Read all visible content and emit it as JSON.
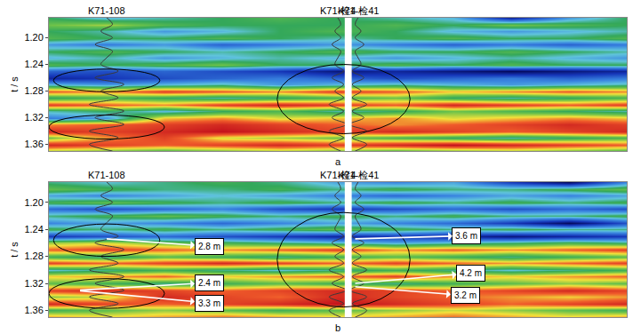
{
  "chart_data": [
    {
      "type": "heatmap",
      "panel_label": "a",
      "y_label": "t / s",
      "x": [
        0,
        10,
        20,
        30,
        40,
        50,
        60,
        70,
        80,
        90,
        100
      ],
      "y": [
        1.17,
        1.18,
        1.19,
        1.2,
        1.21,
        1.22,
        1.23,
        1.24,
        1.25,
        1.26,
        1.27,
        1.28,
        1.29,
        1.3,
        1.31,
        1.32,
        1.33,
        1.34,
        1.35,
        1.36,
        1.37
      ],
      "xlim": [
        0,
        100
      ],
      "ylim": [
        1.37,
        1.17
      ],
      "yticks": [
        {
          "value": 1.2,
          "label": "1.20"
        },
        1.24,
        1.28,
        1.32,
        1.36
      ],
      "tick_labels": "y",
      "gap": [
        51.2,
        52.4
      ],
      "cells": [
        [
          0,
          -0.2,
          -0.1,
          0,
          0.1,
          0,
          -0.1,
          -0.2,
          -0.8,
          -0.3,
          0
        ],
        [
          0.2,
          0.3,
          0.1,
          0,
          0,
          0,
          0.1,
          0,
          0.2,
          0.1,
          0
        ],
        [
          0,
          -0.1,
          -0.3,
          -0.2,
          0,
          0.1,
          0,
          -0.2,
          -0.3,
          -0.2,
          -0.1
        ],
        [
          0.1,
          0,
          0,
          0.1,
          0,
          -0.1,
          0,
          0.1,
          0,
          0,
          0.1
        ],
        [
          -0.3,
          -0.4,
          -0.3,
          -0.5,
          -0.4,
          -0.3,
          -0.4,
          -0.5,
          -0.4,
          -0.5,
          -0.4
        ],
        [
          0,
          0.1,
          0,
          -0.1,
          0,
          0.1,
          0,
          0,
          0.1,
          0,
          -0.1
        ],
        [
          -0.2,
          -0.1,
          -0.3,
          -0.2,
          -0.1,
          -0.2,
          -0.3,
          -0.2,
          -0.1,
          -0.2,
          -0.3
        ],
        [
          0.1,
          0,
          0.1,
          0.2,
          0,
          0,
          0.1,
          0,
          0.1,
          0,
          0
        ],
        [
          -0.5,
          -0.6,
          -0.5,
          -0.6,
          -0.7,
          -0.9,
          -0.8,
          -0.9,
          -1,
          -0.9,
          -0.8
        ],
        [
          -0.8,
          -0.7,
          -0.6,
          -0.5,
          -0.4,
          -0.5,
          -0.6,
          -0.5,
          -0.4,
          -0.5,
          -0.4
        ],
        [
          -0.2,
          -0.3,
          -0.2,
          -0.1,
          -0.3,
          -0.2,
          -0.1,
          -0.2,
          -0.3,
          -0.2,
          -0.1
        ],
        [
          0.7,
          0.6,
          0.8,
          0.7,
          0.6,
          0.8,
          0.7,
          0.5,
          0.6,
          0.7,
          0.6
        ],
        [
          0,
          0.1,
          0,
          -0.1,
          0,
          0.1,
          0.2,
          0,
          -0.1,
          0,
          0.1
        ],
        [
          0.8,
          0.7,
          0.6,
          0.8,
          0.9,
          0.8,
          0.7,
          0.9,
          0.8,
          0.7,
          0.8
        ],
        [
          -0.1,
          0,
          -0.2,
          0,
          0.1,
          -0.1,
          0,
          0.2,
          0.1,
          0,
          -0.1
        ],
        [
          -0.4,
          -0.3,
          0.5,
          0.6,
          0.4,
          0.5,
          0.6,
          0.4,
          0.5,
          0.6,
          0.5
        ],
        [
          0.6,
          0.7,
          0.8,
          0.9,
          0.8,
          0.7,
          0.6,
          0.7,
          0.8,
          0.9,
          0.8
        ],
        [
          0.9,
          0.8,
          0.9,
          1,
          0.9,
          0.8,
          0.9,
          0.8,
          0.7,
          0.8,
          0.9
        ],
        [
          0.2,
          0.6,
          0.8,
          0.4,
          0.3,
          0.2,
          0.1,
          0,
          -0.1,
          0,
          0.1
        ],
        [
          0.9,
          0.8,
          0.7,
          0.8,
          0.9,
          0.8,
          0.9,
          1,
          0.9,
          0.8,
          0.7
        ],
        [
          0.3,
          0.2,
          0.1,
          0.2,
          0.3,
          0.2,
          0.1,
          0.2,
          0.3,
          0.2,
          0.1
        ]
      ],
      "wells": [
        {
          "name": "K71-108",
          "x": 10,
          "log": [
            0,
            1,
            -1,
            1,
            -2,
            1,
            0,
            -1,
            2,
            -2,
            3,
            -1,
            2,
            -3,
            3,
            -2,
            3,
            -3,
            2,
            -3,
            1
          ]
        },
        {
          "name": "K71-检4",
          "x": 50,
          "log": [
            0,
            0.5,
            -0.5,
            0.5,
            -1,
            0.5,
            0,
            -0.5,
            1,
            -1,
            1,
            -0.5,
            1,
            -1.5,
            1,
            -1,
            1.5,
            -1.5,
            1,
            -1.5,
            0.5
          ]
        },
        {
          "name": "K71-检41",
          "x": 53.5,
          "log": [
            0,
            -0.5,
            0.5,
            -0.5,
            1,
            -0.5,
            0,
            0.5,
            -1,
            1,
            -1,
            0.5,
            -1,
            1.5,
            -1,
            1,
            -1.5,
            1.5,
            -1,
            1.5,
            -0.5
          ]
        }
      ],
      "highlights": [
        {
          "x": 10,
          "y": 1.264,
          "rx": 9.2,
          "ry": 0.017
        },
        {
          "x": 10,
          "y": 1.334,
          "rx": 10,
          "ry": 0.018
        },
        {
          "x": 51,
          "y": 1.292,
          "rx": 11.5,
          "ry": 0.052
        }
      ],
      "annotations": []
    },
    {
      "type": "heatmap",
      "panel_label": "b",
      "y_label": "t / s",
      "x": [
        0,
        10,
        20,
        30,
        40,
        50,
        60,
        70,
        80,
        90,
        100
      ],
      "y": [
        1.17,
        1.18,
        1.19,
        1.2,
        1.21,
        1.22,
        1.23,
        1.24,
        1.25,
        1.26,
        1.27,
        1.28,
        1.29,
        1.3,
        1.31,
        1.32,
        1.33,
        1.34,
        1.35,
        1.36,
        1.37
      ],
      "xlim": [
        0,
        100
      ],
      "ylim": [
        1.37,
        1.17
      ],
      "yticks": [
        {
          "value": 1.2,
          "label": "1.20"
        },
        1.24,
        1.28,
        1.32,
        1.36
      ],
      "tick_labels": "y",
      "gap": [
        51.2,
        52.4
      ],
      "cells": [
        [
          0,
          -0.1,
          0,
          0.1,
          0,
          -0.2,
          -0.3,
          -0.2,
          -0.6,
          -0.9,
          -0.3
        ],
        [
          0.2,
          0.1,
          0,
          0,
          0.1,
          0,
          0.1,
          0,
          0,
          0.1,
          0.2
        ],
        [
          -0.2,
          -0.3,
          -0.2,
          -0.1,
          -0.2,
          -0.3,
          -0.4,
          -0.3,
          -0.2,
          -0.3,
          -0.2
        ],
        [
          0.1,
          0.2,
          0.1,
          0,
          0.1,
          0,
          0.1,
          0,
          0.1,
          0,
          0.1
        ],
        [
          -0.4,
          -0.5,
          -0.4,
          -0.3,
          -0.5,
          -0.6,
          -0.5,
          -0.4,
          -0.5,
          -0.4,
          -0.5
        ],
        [
          0,
          0.1,
          0.2,
          0.1,
          0,
          0.1,
          0,
          0.1,
          0,
          0,
          0.1
        ],
        [
          -0.3,
          -0.2,
          -0.3,
          -0.4,
          -0.3,
          -0.2,
          -0.3,
          -0.4,
          -0.6,
          -0.9,
          -0.5
        ],
        [
          0.1,
          0,
          0.1,
          0,
          0.1,
          0.2,
          0.1,
          0,
          0.1,
          0,
          0
        ],
        [
          -0.6,
          -0.5,
          -0.4,
          -0.5,
          -0.6,
          -0.7,
          -0.6,
          -0.7,
          -0.8,
          -0.7,
          -0.6
        ],
        [
          0.3,
          0.4,
          0.2,
          0.1,
          0,
          -0.1,
          -0.2,
          -0.1,
          0,
          0.1,
          0
        ],
        [
          0.7,
          0.8,
          0.7,
          0.6,
          0.7,
          0.8,
          0.6,
          0.7,
          0.6,
          0.7,
          0.8
        ],
        [
          0.1,
          0,
          0.2,
          0.1,
          0,
          0.1,
          0.2,
          0.1,
          0,
          0.1,
          0.2
        ],
        [
          0.8,
          0.7,
          0.8,
          0.9,
          0.8,
          0.7,
          0.8,
          0.7,
          0.6,
          0.7,
          0.8
        ],
        [
          -0.1,
          0,
          0.1,
          0,
          -0.1,
          0,
          0.1,
          0,
          -0.1,
          0,
          0.1
        ],
        [
          0.5,
          0.6,
          0.7,
          0.5,
          0.6,
          0.7,
          0.8,
          0.6,
          0.5,
          0.6,
          0.7
        ],
        [
          0.2,
          0.1,
          0,
          0.1,
          0.2,
          0.1,
          0,
          0.1,
          0.2,
          0.3,
          0.2
        ],
        [
          0.8,
          0.9,
          0.8,
          0.7,
          0.8,
          0.9,
          0.8,
          0.7,
          0.8,
          0.9,
          0.8
        ],
        [
          0.3,
          0.4,
          0.9,
          0.8,
          0.7,
          0.9,
          0.8,
          0.7,
          0.6,
          0.5,
          0.6
        ],
        [
          0.9,
          0.8,
          0.7,
          0.8,
          0.9,
          1,
          0.9,
          0.8,
          0.7,
          0.8,
          0.9
        ],
        [
          0.1,
          0.2,
          0.3,
          0.2,
          0.1,
          0.2,
          0.3,
          0.4,
          0.3,
          0.2,
          0.1
        ],
        [
          0.6,
          0.5,
          0.6,
          0.7,
          0.6,
          0.5,
          0.6,
          0.7,
          0.6,
          0.5,
          0.6
        ]
      ],
      "wells": [
        {
          "name": "K71-108",
          "x": 10,
          "log": [
            0,
            1,
            -1,
            1,
            -2,
            1,
            0,
            -1,
            2,
            -2,
            3,
            -1,
            2,
            -3,
            3,
            -2,
            3,
            -3,
            2,
            -3,
            1
          ]
        },
        {
          "name": "K71-检4",
          "x": 50,
          "log": [
            0,
            0.5,
            -0.5,
            0.5,
            -1,
            0.5,
            0,
            -0.5,
            1,
            -1,
            1,
            -0.5,
            1,
            -1.5,
            1,
            -1,
            1.5,
            -1.5,
            1,
            -1.5,
            0.5
          ]
        },
        {
          "name": "K71-检41",
          "x": 53.5,
          "log": [
            0,
            -0.5,
            0.5,
            -0.5,
            1,
            -0.5,
            0,
            0.5,
            -1,
            1,
            -1,
            0.5,
            -1,
            1.5,
            -1,
            1,
            -1.5,
            1.5,
            -1,
            1.5,
            -0.5
          ]
        }
      ],
      "highlights": [
        {
          "x": 10,
          "y": 1.256,
          "rx": 9.2,
          "ry": 0.024
        },
        {
          "x": 10,
          "y": 1.335,
          "rx": 10,
          "ry": 0.022
        },
        {
          "x": 51,
          "y": 1.285,
          "rx": 11.5,
          "ry": 0.07
        }
      ],
      "annotations": [
        {
          "text": "2.8 m",
          "x": 10,
          "y": 1.254,
          "ax": 27.7,
          "ay": 1.265
        },
        {
          "text": "2.4 m",
          "x": 5.4,
          "y": 1.33,
          "ax": 27.7,
          "ay": 1.319
        },
        {
          "text": "3.3 m",
          "x": 5.4,
          "y": 1.331,
          "ax": 27.7,
          "ay": 1.349
        },
        {
          "text": "3.6 m",
          "x": 53,
          "y": 1.254,
          "ax": 72.3,
          "ay": 1.2495
        },
        {
          "text": "4.2 m",
          "x": 53,
          "y": 1.32,
          "ax": 73,
          "ay": 1.305
        },
        {
          "text": "3.2 m",
          "x": 53,
          "y": 1.325,
          "ax": 72,
          "ay": 1.338
        }
      ]
    }
  ]
}
